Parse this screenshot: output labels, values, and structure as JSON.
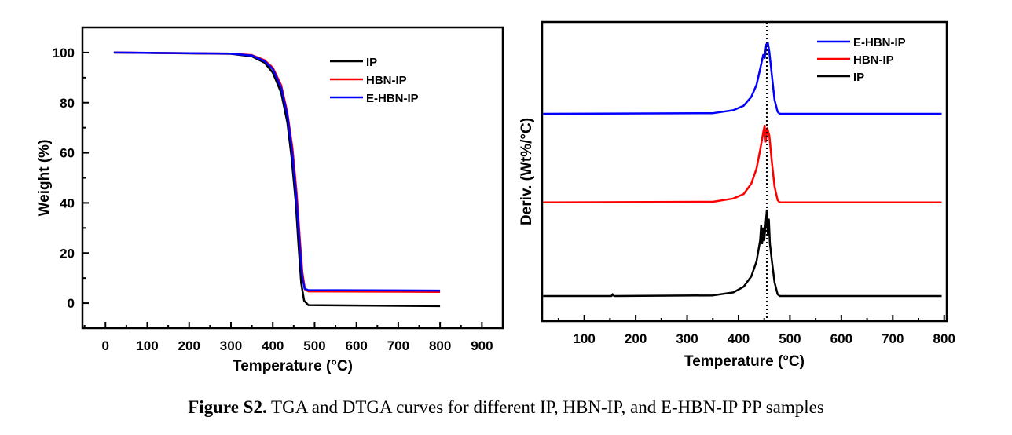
{
  "caption": {
    "label": "Figure S2.",
    "text": " TGA and DTGA curves for different IP, HBN-IP, and E-HBN-IP PP samples"
  },
  "chart_data": [
    {
      "type": "line",
      "xlabel": "Temperature (°C)",
      "ylabel": "Weight (%)",
      "xlim": [
        -55,
        950
      ],
      "ylim": [
        -10,
        110
      ],
      "xticks": [
        0,
        100,
        200,
        300,
        400,
        500,
        600,
        700,
        800,
        900
      ],
      "yticks": [
        0,
        20,
        40,
        60,
        80,
        100
      ],
      "grid": false,
      "legend": "top-right",
      "series": [
        {
          "name": "IP",
          "color": "#000000",
          "points": [
            [
              20,
              100
            ],
            [
              300,
              99.5
            ],
            [
              350,
              98.5
            ],
            [
              380,
              96
            ],
            [
              400,
              92
            ],
            [
              420,
              84
            ],
            [
              435,
              72
            ],
            [
              445,
              58
            ],
            [
              455,
              40
            ],
            [
              462,
              22
            ],
            [
              468,
              8
            ],
            [
              475,
              1
            ],
            [
              485,
              -0.8
            ],
            [
              800,
              -1.2
            ]
          ]
        },
        {
          "name": "HBN-IP",
          "color": "#ff0000",
          "points": [
            [
              20,
              100
            ],
            [
              300,
              99.6
            ],
            [
              350,
              99
            ],
            [
              380,
              97
            ],
            [
              400,
              94
            ],
            [
              420,
              87
            ],
            [
              435,
              76
            ],
            [
              447,
              62
            ],
            [
              457,
              44
            ],
            [
              465,
              25
            ],
            [
              471,
              12
            ],
            [
              477,
              5.5
            ],
            [
              485,
              4.7
            ],
            [
              800,
              4.5
            ]
          ]
        },
        {
          "name": "E-HBN-IP",
          "color": "#0000ff",
          "points": [
            [
              20,
              100
            ],
            [
              300,
              99.6
            ],
            [
              350,
              98.8
            ],
            [
              380,
              96.6
            ],
            [
              400,
              93.5
            ],
            [
              420,
              86
            ],
            [
              435,
              75
            ],
            [
              446,
              61
            ],
            [
              456,
              43
            ],
            [
              464,
              24
            ],
            [
              470,
              11
            ],
            [
              476,
              5.8
            ],
            [
              485,
              5.2
            ],
            [
              800,
              5
            ]
          ]
        }
      ]
    },
    {
      "type": "line",
      "xlabel": "Temperature (°C)",
      "ylabel": "Deriv. (Wt%/°C)",
      "xlim": [
        18,
        805
      ],
      "ylim": [
        0,
        100
      ],
      "xticks": [
        100,
        200,
        300,
        400,
        500,
        600,
        700,
        800
      ],
      "yticks": [],
      "grid": false,
      "legend": "top-right",
      "reference_line_x": 455,
      "series": [
        {
          "name": "E-HBN-IP",
          "color": "#0000ff",
          "points": [
            [
              20,
              69.3
            ],
            [
              350,
              69.5
            ],
            [
              390,
              70.5
            ],
            [
              410,
              72
            ],
            [
              425,
              75
            ],
            [
              435,
              79
            ],
            [
              443,
              85
            ],
            [
              448,
              89
            ],
            [
              451,
              88
            ],
            [
              454,
              92.5
            ],
            [
              457,
              93
            ],
            [
              460,
              90
            ],
            [
              465,
              82
            ],
            [
              470,
              74
            ],
            [
              476,
              70
            ],
            [
              480,
              69.3
            ],
            [
              795,
              69.3
            ]
          ]
        },
        {
          "name": "HBN-IP",
          "color": "#ff0000",
          "points": [
            [
              20,
              39.7
            ],
            [
              350,
              39.9
            ],
            [
              390,
              41
            ],
            [
              410,
              42.5
            ],
            [
              425,
              46
            ],
            [
              435,
              51
            ],
            [
              443,
              58
            ],
            [
              449,
              64
            ],
            [
              451,
              65.3
            ],
            [
              453,
              60
            ],
            [
              456,
              64.5
            ],
            [
              460,
              62
            ],
            [
              465,
              53
            ],
            [
              470,
              45
            ],
            [
              476,
              40.5
            ],
            [
              480,
              39.7
            ],
            [
              795,
              39.7
            ]
          ]
        },
        {
          "name": "IP",
          "color": "#000000",
          "points": [
            [
              20,
              8.4
            ],
            [
              153,
              8.4
            ],
            [
              155,
              9
            ],
            [
              158,
              8.4
            ],
            [
              350,
              8.6
            ],
            [
              390,
              9.6
            ],
            [
              410,
              11.5
            ],
            [
              425,
              15
            ],
            [
              435,
              20
            ],
            [
              442,
              27
            ],
            [
              444,
              32
            ],
            [
              446,
              26
            ],
            [
              448,
              31
            ],
            [
              450,
              27
            ],
            [
              453,
              33
            ],
            [
              455,
              37
            ],
            [
              457,
              29
            ],
            [
              459,
              34
            ],
            [
              461,
              26
            ],
            [
              465,
              20
            ],
            [
              470,
              13
            ],
            [
              476,
              9
            ],
            [
              480,
              8.4
            ],
            [
              795,
              8.4
            ]
          ]
        }
      ]
    }
  ]
}
